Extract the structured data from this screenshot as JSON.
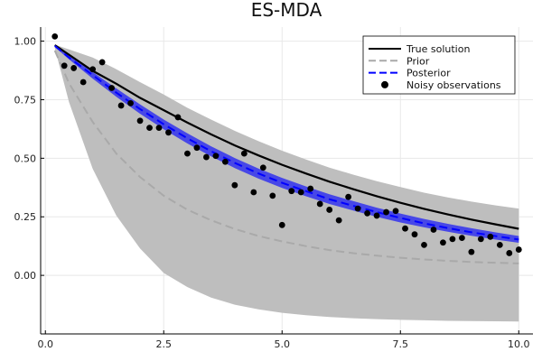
{
  "chart_data": {
    "type": "line",
    "title": "ES-MDA",
    "xlabel": "",
    "ylabel": "",
    "xlim": [
      -0.1,
      10.3
    ],
    "ylim": [
      -0.25,
      1.06
    ],
    "x_ticks": [
      0.0,
      2.5,
      5.0,
      7.5,
      10.0
    ],
    "x_tick_labels": [
      "0.0",
      "2.5",
      "5.0",
      "7.5",
      "10.0"
    ],
    "y_ticks": [
      0.0,
      0.25,
      0.5,
      0.75,
      1.0
    ],
    "y_tick_labels": [
      "0.00",
      "0.25",
      "0.50",
      "0.75",
      "1.00"
    ],
    "grid": true,
    "legend_position": "top-right",
    "legend": [
      {
        "label": "True solution",
        "style": "solid-line",
        "color": "#000000"
      },
      {
        "label": "Prior",
        "style": "dashed-line",
        "color": "#a9a9a9"
      },
      {
        "label": "Posterior",
        "style": "dashed-line",
        "color": "#0000ff"
      },
      {
        "label": "Noisy observations",
        "style": "marker",
        "color": "#000000"
      }
    ],
    "x": [
      0.2,
      0.5,
      1.0,
      1.5,
      2.0,
      2.5,
      3.0,
      3.5,
      4.0,
      4.5,
      5.0,
      5.5,
      6.0,
      6.5,
      7.0,
      7.5,
      8.0,
      8.5,
      9.0,
      9.5,
      10.0
    ],
    "series": [
      {
        "name": "True solution",
        "color": "#000000",
        "dash": "solid",
        "values": [
          0.983,
          0.942,
          0.873,
          0.818,
          0.758,
          0.705,
          0.652,
          0.602,
          0.555,
          0.512,
          0.472,
          0.435,
          0.4,
          0.368,
          0.338,
          0.31,
          0.284,
          0.26,
          0.238,
          0.218,
          0.199
        ]
      },
      {
        "name": "Prior",
        "color": "#a9a9a9",
        "dash": "dashed",
        "values": [
          0.96,
          0.82,
          0.655,
          0.52,
          0.42,
          0.34,
          0.28,
          0.235,
          0.198,
          0.168,
          0.145,
          0.125,
          0.108,
          0.095,
          0.084,
          0.075,
          0.068,
          0.062,
          0.057,
          0.054,
          0.051
        ]
      },
      {
        "name": "Posterior",
        "color": "#0000ff",
        "dash": "dashed",
        "values": [
          0.98,
          0.93,
          0.855,
          0.78,
          0.71,
          0.645,
          0.585,
          0.53,
          0.48,
          0.435,
          0.395,
          0.36,
          0.325,
          0.297,
          0.27,
          0.245,
          0.222,
          0.202,
          0.184,
          0.168,
          0.153
        ]
      }
    ],
    "bands": [
      {
        "name": "Prior band",
        "color": "#bebebe",
        "lower": [
          0.97,
          0.74,
          0.455,
          0.255,
          0.115,
          0.01,
          -0.05,
          -0.095,
          -0.125,
          -0.145,
          -0.16,
          -0.17,
          -0.178,
          -0.183,
          -0.187,
          -0.19,
          -0.192,
          -0.194,
          -0.195,
          -0.196,
          -0.197
        ],
        "upper": [
          0.985,
          0.965,
          0.93,
          0.88,
          0.825,
          0.772,
          0.715,
          0.665,
          0.617,
          0.573,
          0.532,
          0.495,
          0.46,
          0.43,
          0.402,
          0.377,
          0.353,
          0.333,
          0.315,
          0.299,
          0.285
        ]
      },
      {
        "name": "Posterior band",
        "color": "#3333ee",
        "lower": [
          0.975,
          0.922,
          0.84,
          0.762,
          0.69,
          0.624,
          0.563,
          0.508,
          0.458,
          0.413,
          0.373,
          0.338,
          0.305,
          0.277,
          0.25,
          0.226,
          0.205,
          0.186,
          0.169,
          0.153,
          0.139
        ],
        "upper": [
          0.985,
          0.938,
          0.868,
          0.798,
          0.73,
          0.665,
          0.606,
          0.551,
          0.501,
          0.456,
          0.416,
          0.38,
          0.346,
          0.317,
          0.289,
          0.264,
          0.241,
          0.22,
          0.201,
          0.184,
          0.168
        ]
      }
    ],
    "observations": {
      "name": "Noisy observations",
      "x": [
        0.2,
        0.4,
        0.6,
        0.8,
        1.0,
        1.2,
        1.4,
        1.6,
        1.8,
        2.0,
        2.2,
        2.4,
        2.6,
        2.8,
        3.0,
        3.2,
        3.4,
        3.6,
        3.8,
        4.0,
        4.2,
        4.4,
        4.6,
        4.8,
        5.0,
        5.2,
        5.4,
        5.6,
        5.8,
        6.0,
        6.2,
        6.4,
        6.6,
        6.8,
        7.0,
        7.2,
        7.4,
        7.6,
        7.8,
        8.0,
        8.2,
        8.4,
        8.6,
        8.8,
        9.0,
        9.2,
        9.4,
        9.6,
        9.8,
        10.0
      ],
      "y": [
        1.02,
        0.895,
        0.885,
        0.825,
        0.88,
        0.91,
        0.8,
        0.725,
        0.735,
        0.66,
        0.63,
        0.63,
        0.61,
        0.675,
        0.52,
        0.545,
        0.505,
        0.51,
        0.485,
        0.385,
        0.52,
        0.355,
        0.46,
        0.34,
        0.215,
        0.36,
        0.355,
        0.37,
        0.305,
        0.28,
        0.235,
        0.335,
        0.285,
        0.265,
        0.255,
        0.27,
        0.275,
        0.2,
        0.175,
        0.13,
        0.195,
        0.14,
        0.155,
        0.16,
        0.1,
        0.155,
        0.165,
        0.13,
        0.095,
        0.11
      ]
    }
  }
}
